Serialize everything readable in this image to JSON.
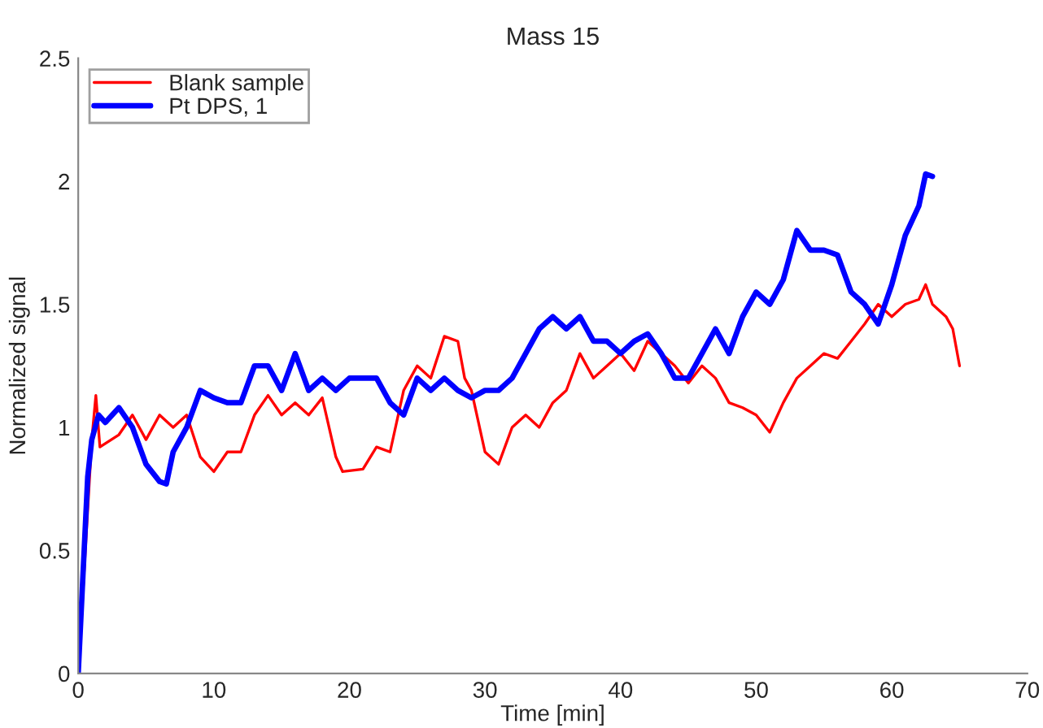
{
  "chart_data": {
    "type": "line",
    "title": "Mass 15",
    "xlabel": "Time [min]",
    "ylabel": "Normalized signal",
    "xlim": [
      0,
      70
    ],
    "xticks": [
      0,
      10,
      20,
      30,
      40,
      50,
      60,
      70
    ],
    "ylim": [
      0,
      2.5
    ],
    "yticks": [
      0,
      0.5,
      1,
      1.5,
      2,
      2.5
    ],
    "grid": false,
    "legend": "top left",
    "series": [
      {
        "name": "Blank sample",
        "color": "#ff0000",
        "x": [
          0,
          1,
          1.3,
          1.6,
          3,
          4,
          5,
          6,
          7,
          8,
          9,
          10,
          11,
          12,
          13,
          14,
          15,
          16,
          17,
          18,
          19,
          19.5,
          21,
          22,
          23,
          24,
          25,
          26,
          27,
          28,
          28.5,
          29,
          30,
          31,
          32,
          33,
          34,
          35,
          36,
          37,
          38,
          39,
          40,
          41,
          42,
          43,
          44,
          45,
          46,
          47,
          48,
          49,
          50,
          51,
          52,
          53,
          54,
          55,
          56,
          57,
          58,
          59,
          60,
          61,
          62,
          62.5,
          63,
          64,
          64.5,
          65
        ],
        "values": [
          0,
          0.95,
          1.13,
          0.92,
          0.97,
          1.05,
          0.95,
          1.05,
          1.0,
          1.05,
          0.88,
          0.82,
          0.9,
          0.9,
          1.05,
          1.13,
          1.05,
          1.1,
          1.05,
          1.12,
          0.88,
          0.82,
          0.83,
          0.92,
          0.9,
          1.15,
          1.25,
          1.2,
          1.37,
          1.35,
          1.2,
          1.15,
          0.9,
          0.85,
          1.0,
          1.05,
          1.0,
          1.1,
          1.15,
          1.3,
          1.2,
          1.25,
          1.3,
          1.23,
          1.35,
          1.3,
          1.25,
          1.18,
          1.25,
          1.2,
          1.1,
          1.08,
          1.05,
          0.98,
          1.1,
          1.2,
          1.25,
          1.3,
          1.28,
          1.35,
          1.42,
          1.5,
          1.45,
          1.5,
          1.52,
          1.58,
          1.5,
          1.45,
          1.4,
          1.25
        ]
      },
      {
        "name": "Pt DPS, 1",
        "color": "#0000ff",
        "x": [
          0,
          0.7,
          1,
          1.5,
          2,
          3,
          4,
          5,
          6,
          6.5,
          7,
          8,
          9,
          10,
          11,
          12,
          13,
          14,
          15,
          16,
          17,
          18,
          19,
          20,
          21,
          22,
          23,
          24,
          25,
          26,
          27,
          28,
          29,
          30,
          31,
          32,
          33,
          34,
          35,
          36,
          37,
          38,
          39,
          40,
          41,
          42,
          43,
          44,
          45,
          46,
          47,
          48,
          49,
          50,
          51,
          52,
          53,
          54,
          55,
          56,
          57,
          58,
          59,
          60,
          61,
          62,
          62.5,
          63
        ],
        "values": [
          0,
          0.8,
          0.95,
          1.05,
          1.02,
          1.08,
          1.0,
          0.85,
          0.78,
          0.77,
          0.9,
          1.0,
          1.15,
          1.12,
          1.1,
          1.1,
          1.25,
          1.25,
          1.15,
          1.3,
          1.15,
          1.2,
          1.15,
          1.2,
          1.2,
          1.2,
          1.1,
          1.05,
          1.2,
          1.15,
          1.2,
          1.15,
          1.12,
          1.15,
          1.15,
          1.2,
          1.3,
          1.4,
          1.45,
          1.4,
          1.45,
          1.35,
          1.35,
          1.3,
          1.35,
          1.38,
          1.3,
          1.2,
          1.2,
          1.3,
          1.4,
          1.3,
          1.45,
          1.55,
          1.5,
          1.6,
          1.8,
          1.72,
          1.72,
          1.7,
          1.55,
          1.5,
          1.42,
          1.58,
          1.78,
          1.9,
          2.03,
          2.02
        ]
      }
    ]
  }
}
